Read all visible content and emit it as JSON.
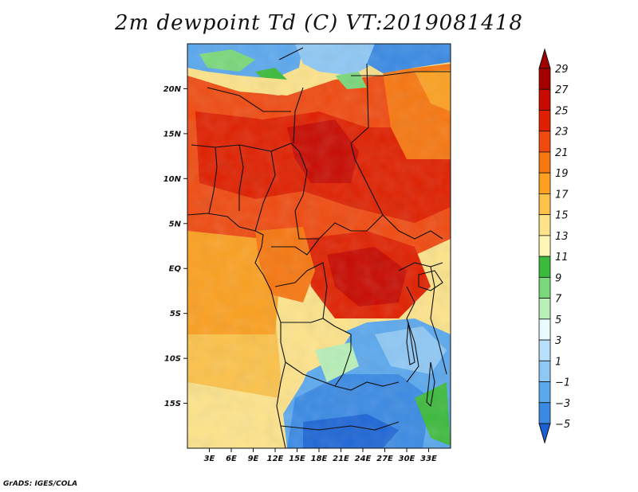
{
  "title": "2m dewpoint Td (C) VT:2019081418",
  "credit": "GrADS: IGES/COLA",
  "map": {
    "lon_range": [
      0,
      36
    ],
    "lat_range": [
      -20,
      25
    ],
    "lat_ticks": [
      {
        "value": 20,
        "label": "20N"
      },
      {
        "value": 15,
        "label": "15N"
      },
      {
        "value": 10,
        "label": "10N"
      },
      {
        "value": 5,
        "label": "5N"
      },
      {
        "value": 0,
        "label": "EQ"
      },
      {
        "value": -5,
        "label": "5S"
      },
      {
        "value": -10,
        "label": "10S"
      },
      {
        "value": -15,
        "label": "15S"
      }
    ],
    "lon_ticks": [
      {
        "value": 3,
        "label": "3E"
      },
      {
        "value": 6,
        "label": "6E"
      },
      {
        "value": 9,
        "label": "9E"
      },
      {
        "value": 12,
        "label": "12E"
      },
      {
        "value": 15,
        "label": "15E"
      },
      {
        "value": 18,
        "label": "18E"
      },
      {
        "value": 21,
        "label": "21E"
      },
      {
        "value": 24,
        "label": "24E"
      },
      {
        "value": 27,
        "label": "27E"
      },
      {
        "value": 30,
        "label": "30E"
      },
      {
        "value": 33,
        "label": "33E"
      }
    ]
  },
  "colorbar": {
    "levels": [
      {
        "label": "29",
        "color": "#a50000"
      },
      {
        "label": "27",
        "color": "#c80a00"
      },
      {
        "label": "25",
        "color": "#e02000"
      },
      {
        "label": "23",
        "color": "#f04a10"
      },
      {
        "label": "21",
        "color": "#f77710"
      },
      {
        "label": "19",
        "color": "#fba020"
      },
      {
        "label": "17",
        "color": "#fcc24a"
      },
      {
        "label": "15",
        "color": "#fde38a"
      },
      {
        "label": "13",
        "color": "#fff5b5"
      },
      {
        "label": "11",
        "color": "#3cba3c"
      },
      {
        "label": "9",
        "color": "#7ad87a"
      },
      {
        "label": "7",
        "color": "#b8f0b8"
      },
      {
        "label": "5",
        "color": "#e8fbff"
      },
      {
        "label": "3",
        "color": "#b8e0fa"
      },
      {
        "label": "1",
        "color": "#8ec8f5"
      },
      {
        "label": "−1",
        "color": "#5aa8ee"
      },
      {
        "label": "−3",
        "color": "#3a8ae4"
      },
      {
        "label": "−5",
        "color": "#1d66d6"
      }
    ],
    "top_color": "#a00000",
    "bottom_color": "#1a5fd4"
  },
  "colors": {
    "ocean_orange": "#fba020",
    "ocean_light": "#fcc24a",
    "ocean_pale": "#fde38a",
    "land_red": "#e02000",
    "land_dark": "#c80a00",
    "land_orange": "#f04a10",
    "desert_blue": "#5aa8ee",
    "desert_deep": "#3a8ae4",
    "green": "#3cba3c",
    "border": "#111111"
  }
}
